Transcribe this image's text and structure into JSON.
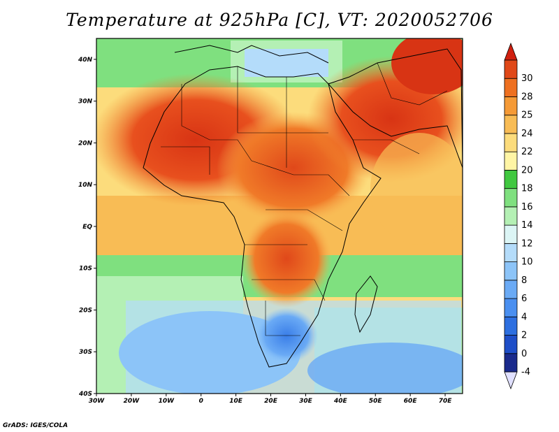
{
  "title": "Temperature at 925hPa [C], VT: 2020052706",
  "credit": "GrADS: IGES/COLA",
  "map": {
    "variable": "Temperature at 925hPa",
    "units": "C",
    "valid_time": "2020052706",
    "lon_range": [
      -30,
      75
    ],
    "lat_range": [
      -40,
      45
    ],
    "lat_ticks": [
      {
        "value": 40,
        "label": "40N"
      },
      {
        "value": 30,
        "label": "30N"
      },
      {
        "value": 20,
        "label": "20N"
      },
      {
        "value": 10,
        "label": "10N"
      },
      {
        "value": 0,
        "label": "EQ"
      },
      {
        "value": -10,
        "label": "10S"
      },
      {
        "value": -20,
        "label": "20S"
      },
      {
        "value": -30,
        "label": "30S"
      },
      {
        "value": -40,
        "label": "40S"
      }
    ],
    "lon_ticks": [
      {
        "value": -30,
        "label": "30W"
      },
      {
        "value": -20,
        "label": "20W"
      },
      {
        "value": -10,
        "label": "10W"
      },
      {
        "value": 0,
        "label": "0"
      },
      {
        "value": 10,
        "label": "10E"
      },
      {
        "value": 20,
        "label": "20E"
      },
      {
        "value": 30,
        "label": "30E"
      },
      {
        "value": 40,
        "label": "40E"
      },
      {
        "value": 50,
        "label": "50E"
      },
      {
        "value": 60,
        "label": "60E"
      },
      {
        "value": 70,
        "label": "70E"
      }
    ]
  },
  "colorbar": {
    "levels": [
      {
        "label": "-4",
        "color": "#1a2a8c"
      },
      {
        "label": "0",
        "color": "#1e4ec8"
      },
      {
        "label": "2",
        "color": "#2d6fe0"
      },
      {
        "label": "4",
        "color": "#4a8ff0"
      },
      {
        "label": "6",
        "color": "#6aaaf5"
      },
      {
        "label": "8",
        "color": "#8cc4f8"
      },
      {
        "label": "10",
        "color": "#b4dcfa"
      },
      {
        "label": "12",
        "color": "#dcf5f5"
      },
      {
        "label": "14",
        "color": "#b4f0b4"
      },
      {
        "label": "16",
        "color": "#7fe07f"
      },
      {
        "label": "18",
        "color": "#40c840"
      },
      {
        "label": "20",
        "color": "#fff5a5"
      },
      {
        "label": "22",
        "color": "#fcdc7c"
      },
      {
        "label": "24",
        "color": "#f8bc55"
      },
      {
        "label": "25",
        "color": "#f59a36"
      },
      {
        "label": "28",
        "color": "#ee7020"
      },
      {
        "label": "30",
        "color": "#e04818"
      }
    ],
    "under_color": "#e0e0ff",
    "over_color": "#d02010"
  }
}
